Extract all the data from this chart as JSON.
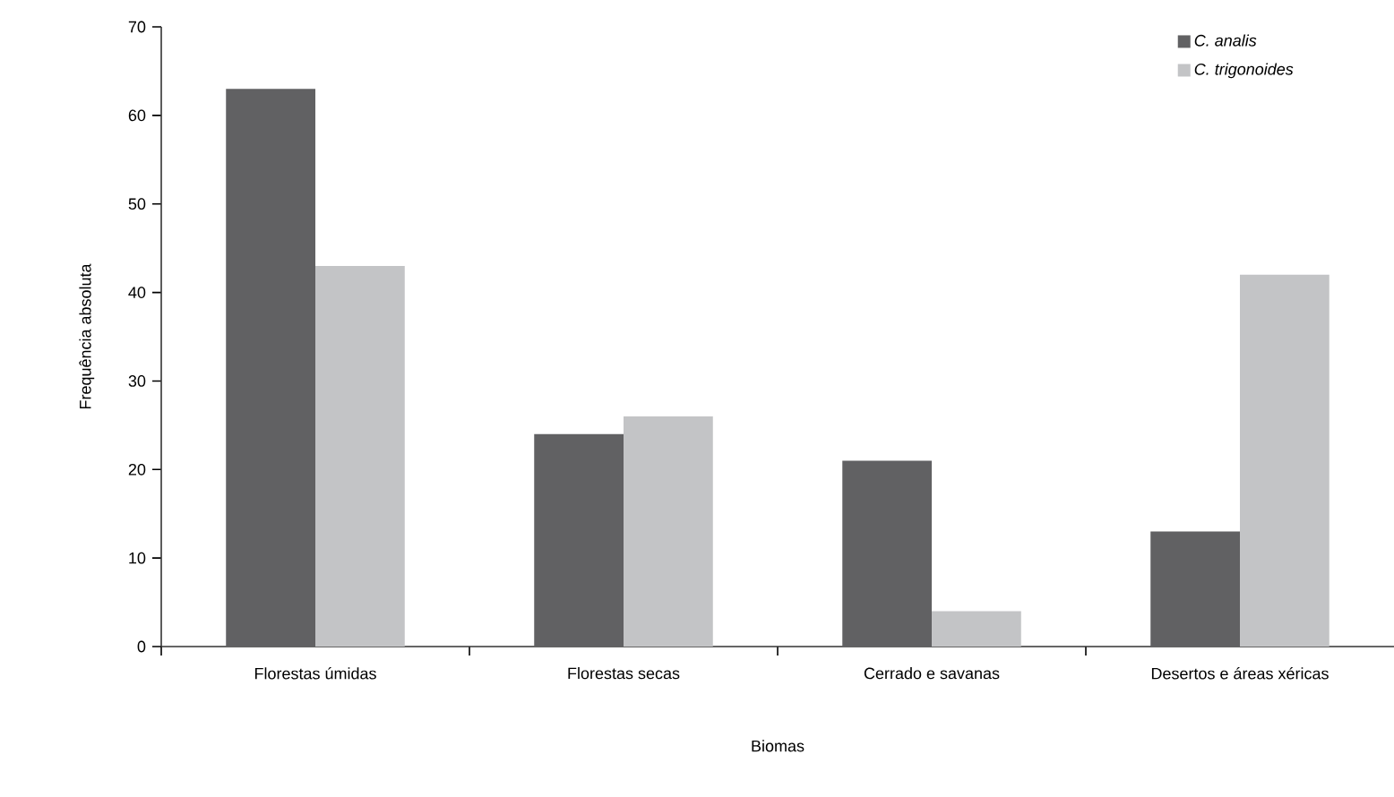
{
  "chart_data": {
    "type": "bar",
    "xlabel": "Biomas",
    "ylabel": "Frequência absoluta",
    "categories": [
      "Florestas úmidas",
      "Florestas secas",
      "Cerrado e savanas",
      "Desertos e áreas xéricas"
    ],
    "series": [
      {
        "name": "C. analis",
        "color": "#616163",
        "values": [
          63,
          24,
          21,
          13
        ]
      },
      {
        "name": "C. trigonoides",
        "color": "#c3c4c6",
        "values": [
          43,
          26,
          4,
          42
        ]
      }
    ],
    "ylim": [
      0,
      70
    ],
    "yticks": [
      0,
      10,
      20,
      30,
      40,
      50,
      60,
      70
    ],
    "grid": false,
    "legend": "top right"
  }
}
